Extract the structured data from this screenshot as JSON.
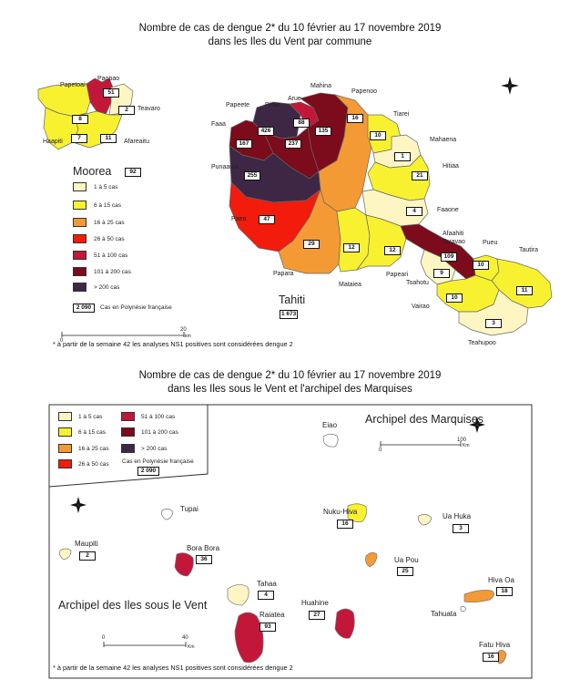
{
  "top": {
    "title_line1": "Nombre de cas de dengue 2* du 10 février au 17 novembre 2019",
    "title_line2": "dans les Iles du Vent par commune",
    "moorea": {
      "name": "Moorea",
      "total": "92",
      "communes": [
        {
          "name": "Papetoai",
          "value": "8"
        },
        {
          "name": "Paopao",
          "value": "51"
        },
        {
          "name": "Teavaro",
          "value": "2"
        },
        {
          "name": "Haapiti",
          "value": "7"
        },
        {
          "name": "Afareaitu",
          "value": "11"
        }
      ]
    },
    "tahiti": {
      "name": "Tahiti",
      "total": "1 673",
      "communes": [
        {
          "name": "Mahina",
          "value": "135"
        },
        {
          "name": "Arue",
          "value": "88"
        },
        {
          "name": "Pirae",
          "value": "426"
        },
        {
          "name": "Papeete",
          "value": "237"
        },
        {
          "name": "Faaa",
          "value": "167"
        },
        {
          "name": "Punaauia",
          "value": "255"
        },
        {
          "name": "Paea",
          "value": "47"
        },
        {
          "name": "Papara",
          "value": "29"
        },
        {
          "name": "Papenoo",
          "value": "16"
        },
        {
          "name": "Tiarei",
          "value": "10"
        },
        {
          "name": "Mahaena",
          "value": "1"
        },
        {
          "name": "Hitiaa",
          "value": "21"
        },
        {
          "name": "Faaone",
          "value": "4"
        },
        {
          "name": "Afaahiti Taravao",
          "value": "109"
        },
        {
          "name": "Mataiea",
          "value": "12"
        },
        {
          "name": "Papeari",
          "value": "12"
        },
        {
          "name": "Pueu",
          "value": "10"
        },
        {
          "name": "Tautira",
          "value": "11"
        },
        {
          "name": "Toahotu",
          "value": "9"
        },
        {
          "name": "Vairao",
          "value": "10"
        },
        {
          "name": "Teahupoo",
          "value": "3"
        }
      ]
    },
    "legend": [
      {
        "label": "1 à 5 cas",
        "color": "#fdf6c3"
      },
      {
        "label": "6 à 15 cas",
        "color": "#f8f130"
      },
      {
        "label": "16 à 25 cas",
        "color": "#f49a34"
      },
      {
        "label": "26 à 50 cas",
        "color": "#f21b0c"
      },
      {
        "label": "51 à 100 cas",
        "color": "#c3173a"
      },
      {
        "label": "101 à 200 cas",
        "color": "#7c0b1b"
      },
      {
        "label": "> 200 cas",
        "color": "#3e2745"
      }
    ],
    "legend_total_value": "2 090",
    "legend_total_label": "Cas en Polynésie française",
    "scale_start": "0",
    "scale_end": "20",
    "scale_unit": "km",
    "note": "* à partir de la semaine 42 les analyses NS1 positives sont considérées dengue 2"
  },
  "bottom": {
    "title_line1": "Nombre de cas de dengue 2* du 10 février au 17 novembre 2019",
    "title_line2": "dans les Iles sous le Vent et l'archipel des Marquises",
    "legend": [
      {
        "label": "1 à 5 cas",
        "color": "#fdf6c3"
      },
      {
        "label": "6 à 15 cas",
        "color": "#f8f130"
      },
      {
        "label": "16 à 25 cas",
        "color": "#f49a34"
      },
      {
        "label": "26 à 50 cas",
        "color": "#f21b0c"
      },
      {
        "label": "51 à 100 cas",
        "color": "#c3173a"
      },
      {
        "label": "101 à 200 cas",
        "color": "#7c0b1b"
      },
      {
        "label": "> 200 cas",
        "color": "#3e2745"
      }
    ],
    "legend_total_label": "Cas en Polynésie française",
    "legend_total_value": "2 090",
    "marquises": {
      "name": "Archipel des Marquises",
      "islands": [
        {
          "name": "Eiao",
          "value": ""
        },
        {
          "name": "Nuku-Hiva",
          "value": "16"
        },
        {
          "name": "Ua Huka",
          "value": "3"
        },
        {
          "name": "Ua Pou",
          "value": "25"
        },
        {
          "name": "Hiva Oa",
          "value": "18"
        },
        {
          "name": "Tahuata",
          "value": ""
        },
        {
          "name": "Fatu Hiva",
          "value": "16"
        }
      ],
      "scale_start": "0",
      "scale_end": "100",
      "scale_unit": "Km"
    },
    "sous_le_vent": {
      "name": "Archipel des  Iles sous le Vent",
      "islands": [
        {
          "name": "Tupai",
          "value": ""
        },
        {
          "name": "Maupiti",
          "value": "2"
        },
        {
          "name": "Bora Bora",
          "value": "36"
        },
        {
          "name": "Tahaa",
          "value": "4"
        },
        {
          "name": "Raiatea",
          "value": "93"
        },
        {
          "name": "Huahine",
          "value": "27"
        }
      ],
      "scale_start": "0",
      "scale_end": "40",
      "scale_unit": "Km"
    },
    "note": "* à partir de la semaine 42 les analyses NS1 positives sont considérées dengue 2"
  }
}
